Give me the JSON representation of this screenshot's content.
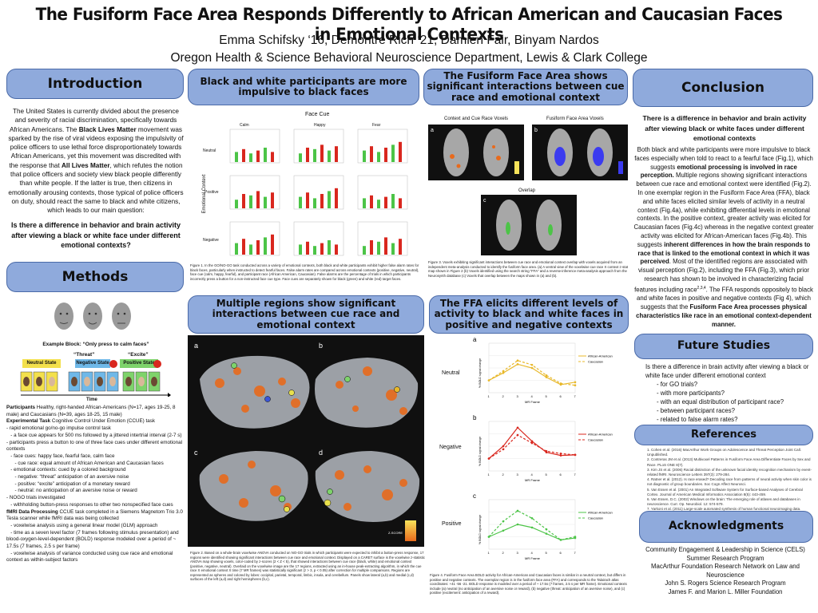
{
  "title": "The Fusiform Face Area Responds Differently to African American and Caucasian Faces in Emotional Contexts",
  "authors": "Emma Schifsky ‘16, Demontre Rich ‘21, Damien Fair, Binyam Nardos",
  "affiliation": "Oregon Health & Science Behavioral Neuroscience Department, Lewis & Clark College",
  "sections": {
    "introduction": {
      "header": "Introduction",
      "p1": "The United States is currently divided about the presence and severity of racial discrimination, specifically towards African Americans. The ",
      "blm": "Black Lives Matter",
      "p2": " movement was sparked by the rise of viral videos exposing the impulsivity of police officers to use lethal force disproportionately towards African Americans, yet this movement was discredited with the response that ",
      "alm": "All Lives Matter",
      "p3": ", which refutes the notion that police officers and society view black people differently than white people. If the latter is true, then citizens in emotionally arousing contexts, those typical of police officers on duty, should react the same to black and white citizens, which leads to our main question:",
      "question": "Is there a difference in behavior and brain activity after viewing a black or white face under different emotional contexts?"
    },
    "methods": {
      "header": "Methods",
      "example_block": "Example Block: “Only press to calm faces”",
      "threat": "“Threat”",
      "excite": "“Excite”",
      "neutral_state": "Neutral State",
      "negative_state": "Negative State",
      "positive_state": "Positive State",
      "time": "Time",
      "lines": [
        {
          "b": "Participants",
          "t": " Healthy, right-handed African-Americans (N=17, ages 19-25, 8 male) and Caucasians (N=39, ages 18-25, 15 male)"
        },
        {
          "b": "Experimental Task",
          "t": " Cognitive Control Under Emotion (CCUE) task"
        },
        {
          "b": "",
          "t": "- rapid emotional go/no-go impulse control task"
        },
        {
          "b": "",
          "t": "   - a face cue appears for 500 ms followed by a jittered intertrial interval (2-7 s)"
        },
        {
          "b": "",
          "t": "- participants press a button to one of three face cues under different emotional contexts"
        },
        {
          "b": "",
          "t": "   - face cues: happy face, fearful face, calm face"
        },
        {
          "b": "",
          "t": "      - cue race: equal amount of African American and Caucasian faces"
        },
        {
          "b": "",
          "t": "   - emotional contexts: cued by a colored background"
        },
        {
          "b": "",
          "t": "      - negative: “threat” anticipation of an aversive noise"
        },
        {
          "b": "",
          "t": "      - positive: “excite” anticipation of a monetary reward"
        },
        {
          "b": "",
          "t": "      - neutral: no anticipation of an aversive noise or reward"
        },
        {
          "b": "",
          "t": "- NOGO trials investigated"
        },
        {
          "b": "",
          "t": "   - withholding button-press responses to other two nonspecified face cues"
        },
        {
          "b": "fMRI Data Processing",
          "t": " CCUE task completed in a Siemens Magnetom Trio 3.0 Tesla scanner while fMRI data was being collected"
        },
        {
          "b": "",
          "t": "   - voxelwise analysis using a general linear model (GLM) approach"
        },
        {
          "b": "",
          "t": "   - time as a seven level factor (7 frames following stimulus presentation) and blood-oxygen-level-dependent (BOLD) response modeled over a period of ~ 17.5s (7 frames, 2.5 s per frame)"
        },
        {
          "b": "",
          "t": "   - voxelwise analysis of variance conducted using cue race and emotional context as within-subject factors"
        }
      ]
    },
    "impulsive": {
      "header": "Black and white participants are more impulsive to black faces",
      "face_cue": "Face Cue",
      "cols": [
        "Calm",
        "Happy",
        "Fear"
      ],
      "rows": [
        "Neutral",
        "Positive",
        "Negative"
      ],
      "ylabel": "Emotional Context",
      "caption": "Figure 1. In the GO/NO-GO task conducted across a variety of emotional contexts, both black and white participants exhibit higher false alarm rates for black faces, particularly when instructed to detect fearful faces. False alarm rates are compared across emotional contexts (positive, negative, neutral), face cue (calm, happy, fearful), and participant race (African American, Caucasian). False alarms are the percentage of trials in which participants incorrectly press a button for a non-instructed face cue type. Face cues are separately shown for black (green) and white (red) target faces."
    },
    "ffa_interact": {
      "header": "The Fusiform Face Area shows significant interactions between cue race and emotional context",
      "label_a": "Context and Cue Race Voxels",
      "label_b": "Fusiform Face Area Voxels",
      "label_c": "Overlap",
      "caption": "Figure 3. Voxels exhibiting significant interactions between cue race and emotional context overlap with voxels acquired from an independent meta-analysis conducted to identify the fusiform face area. (a) A ventral view of the voxelwise cue race X context z-stat map shown in Figure 2 (b) Voxels identified using the search string “FFA” and a reverse-inference meta-analysis approach from the Neurosynth database (c) Voxels that overlap between the maps shown in (a) and (b)."
    },
    "regions": {
      "header": "Multiple regions show significant interactions between cue race and emotional context",
      "caption": "Figure 2. Based on a whole-brain voxelwise ANOVA conducted on NO-GO trials in which participants were expected to inhibit a button-press response, 17 regions were identified showing significant interactions between cue race and emotional context. Displayed on a CARET surface is the voxelwise z-statistic ANOVA map showing voxels, color-coded by z-scores (2 < Z < 5), that showed interactions between cue race (black, white) and emotional context (positive, negative, neutral). Overlaid on the voxelwise image are the 17 regions, extracted using an in-house peak-extracting algorithm, in which the cue race X emotional context X time (7 MR frames) was statistically significant (z > 3, p < 0.05) after correction for multiple comparisons. Regions are represented as spheres and colored by lobes: occipital, parietal, temporal, limbic, insula, and cerebellum. Panels show lateral (a,b) and medial (c,d) surfaces of the left (a,d) and right hemispheres (b,c).",
      "zscore": "Z-SCORE"
    },
    "ffa_levels": {
      "header": "The FFA elicits different levels of activity to black and white faces in positive and negative contexts",
      "rows": [
        "Neutral",
        "Negative",
        "Positive"
      ],
      "legend_aa": "African-American",
      "legend_c": "Caucasian",
      "xlabel": "MR Frame",
      "ylabel": "% BOLD signal change",
      "caption": "Figure 4. Fusiform Face Area BOLD activity for African-American and Caucasian faces is similar in a neutral context, but differs in positive and negative contexts. The exemplar region is in the fusiform face area (FFA) and corresponds to the Talairach atlas coordinates: +41 -56 -21. BOLD response is modeled over a period of ~ 17.5s (7 frames, 2.5 s per MR frame). Emotional contexts include (a) neutral (no anticipation of an aversive noise or reward), (b) negative (threat: anticipation of an aversive noise), and (c) positive (excitement: anticipation of a reward)."
    },
    "conclusion": {
      "header": "Conclusion",
      "lead": "There is a difference in behavior and brain activity after viewing black or white faces under different emotional contexts",
      "body1": "Both black and white participants were more impulsive to black faces especially when told to react to a fearful face (Fig.1), which suggests ",
      "b1": "emotional processing is involved in race perception.",
      "body2": " Multiple regions showing significant interactions between cue race and emotional context were identified (Fig.2). In one exemplar region in the Fusiform Face Area (FFA), black and white faces elicited similar levels of activity in a neutral context (Fig.4a), while exhibiting differential levels in emotional contexts. In the positive context, greater activity was elicited for Caucasian faces (Fig.4c) whereas in the negative context greater activity was elicited for African-American faces (Fig.4b). This suggests ",
      "b2": "inherent differences in how the brain responds to race that is linked to the emotional context in which it was perceived",
      "body3": ". Most of the identified regions are associated with visual perception (Fig.2), including the FFA (Fig.3), which prior research has shown to be involved in characterizing facial features including race",
      "sup": "2,3,4",
      "body4": ". The FFA responds oppositely to black and white faces in positive and negative contexts (Fig 4), which suggests that the ",
      "b3": "Fusiform Face Area processes physical characteristics like race in an emotional context-dependent manner."
    },
    "future": {
      "header": "Future Studies",
      "lead": "Is there a difference in brain activity after viewing a black or white face under different emotional context",
      "items": [
        "- for GO trials?",
        "- with more participants?",
        "- with an equal distribution of participant race?",
        "- between participant races?",
        "- related to false alarm rates?"
      ]
    },
    "references": {
      "header": "References",
      "items": [
        "1.   Cohen et al. (2016) MacArthur Work Groups on Adolescence and Threat Perception Joint Call. Unpublished.",
        "2.   Contreras JM et al. (2013) Multivoxel Patterns in Fusiform Face Area Differentiate Faces by Sex and Race. PLoS ONE 8(7).",
        "3.   Kim JS et al. (2006) Racial distinction of the unknown facial identity recognition mechanism by event-related fMRI. Neuroscience Letters 397(3): 279-284.",
        "4.   Ratner et al. (2012). Is race erased? Decoding race from patterns of neural activity when skin color is not diagnostic of group boundaries. Soc Cogn Affect Neurosci.",
        "5.   Van Essen et al. (2001) An Integrated Software System for Surface-based Analyses of Cerebral Cortex. Journal of American Medical Informatics Association 8(5): 443-459.",
        "6.   Van Essen, D.C. (2002) Windows on the brain: The emerging role of atlases and databases in neuroscience. Curr. Op. Neurobiol. 12: 574-579.",
        "7.   Yarkoni et al. (2011) Large-scale automated synthesis of human functional neuroimaging data. Nature Methods 8(8): 665-670."
      ]
    },
    "acknowledgments": {
      "header": "Acknowledgments",
      "items": [
        "Community Engagement & Leadership in Science (CELS)",
        "Summer Research Program",
        "MacArthur Foundation Research Network on Law and Neuroscience",
        "John S. Rogers Science Research Program",
        "James F. and Marion L. Miller Foundation"
      ]
    }
  },
  "colors": {
    "header_bg": "#8faadc",
    "header_border": "#4a6aa8",
    "aa_line": "#e8b829",
    "neg_line": "#d9271e",
    "pos_line": "#4cc447"
  },
  "chart_data": [
    {
      "type": "line",
      "title": "Neutral",
      "x": [
        1,
        2,
        3,
        4,
        5,
        6,
        7
      ],
      "xlabel": "MR Frame",
      "ylabel": "% BOLD signal change",
      "series": [
        {
          "name": "African-American",
          "values": [
            0.0,
            0.12,
            0.26,
            0.2,
            0.05,
            -0.07,
            -0.03
          ]
        },
        {
          "name": "Caucasian",
          "values": [
            0.0,
            0.15,
            0.32,
            0.25,
            0.08,
            -0.05,
            -0.08
          ]
        }
      ]
    },
    {
      "type": "line",
      "title": "Negative",
      "x": [
        1,
        2,
        3,
        4,
        5,
        6,
        7
      ],
      "xlabel": "MR Frame",
      "ylabel": "% BOLD signal change",
      "series": [
        {
          "name": "African-American",
          "values": [
            0.0,
            0.2,
            0.5,
            0.28,
            0.1,
            0.05,
            0.06
          ]
        },
        {
          "name": "Caucasian",
          "values": [
            0.0,
            0.15,
            0.38,
            0.25,
            0.12,
            0.08,
            0.06
          ]
        }
      ]
    },
    {
      "type": "line",
      "title": "Positive",
      "x": [
        1,
        2,
        3,
        4,
        5,
        6,
        7
      ],
      "xlabel": "MR Frame",
      "ylabel": "% BOLD signal change",
      "series": [
        {
          "name": "African-American",
          "values": [
            0.0,
            0.1,
            0.2,
            0.15,
            0.05,
            -0.05,
            -0.02
          ]
        },
        {
          "name": "Caucasian",
          "values": [
            0.0,
            0.25,
            0.42,
            0.3,
            0.12,
            -0.05,
            0.0
          ]
        }
      ]
    }
  ]
}
